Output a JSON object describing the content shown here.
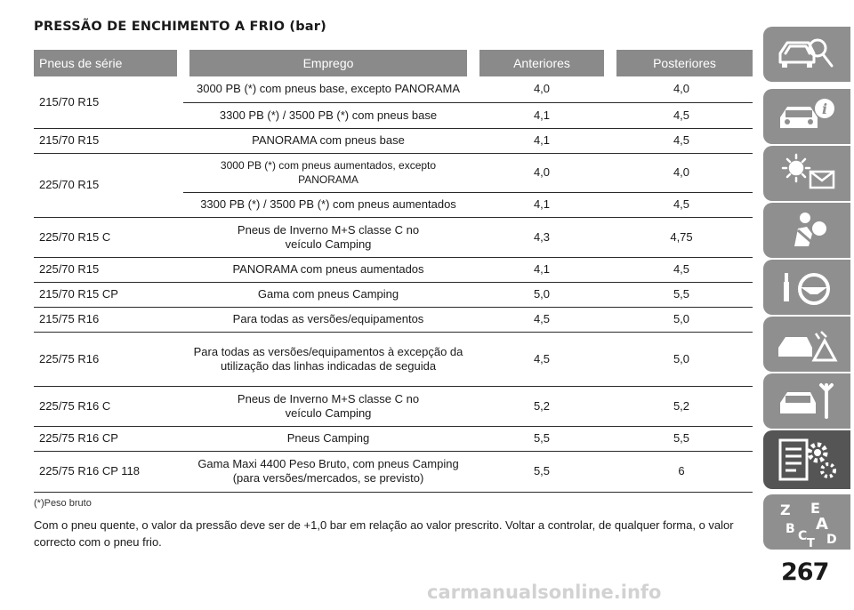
{
  "title": "PRESSÃO DE ENCHIMENTO A FRIO (bar)",
  "table": {
    "headers": [
      "Pneus de série",
      "Emprego",
      "Anteriores",
      "Posteriores"
    ],
    "rows": [
      {
        "tyre": "215/70 R15",
        "rowspan": 2,
        "use": "3000 PB (*) com pneus base, excepto PANORAMA",
        "front": "4,0",
        "rear": "4,0"
      },
      {
        "use": "3300 PB (*) / 3500 PB (*) com pneus base",
        "front": "4,1",
        "rear": "4,5"
      },
      {
        "tyre": "215/70 R15",
        "use": "PANORAMA com pneus base",
        "front": "4,1",
        "rear": "4,5"
      },
      {
        "tyre": "225/70 R15",
        "rowspan": 2,
        "use": "3000 PB (*) com pneus aumentados, excepto PANORAMA",
        "front": "4,0",
        "rear": "4,0"
      },
      {
        "use": "3300 PB (*) / 3500 PB (*) com pneus aumentados",
        "front": "4,1",
        "rear": "4,5"
      },
      {
        "tyre": "225/70 R15 C",
        "use": "Pneus de Inverno M+S classe C no veículo Camping",
        "front": "4,3",
        "rear": "4,75"
      },
      {
        "tyre": "225/70 R15",
        "use": "PANORAMA com pneus aumentados",
        "front": "4,1",
        "rear": "4,5"
      },
      {
        "tyre": "215/70 R15 CP",
        "use": "Gama com pneus Camping",
        "front": "5,0",
        "rear": "5,5"
      },
      {
        "tyre": "215/75 R16",
        "use": "Para todas as versões/equipamentos",
        "front": "4,5",
        "rear": "5,0"
      },
      {
        "tyre": "225/75 R16",
        "use": "Para todas as versões/equipamentos à excepção da utilização das linhas indicadas de seguida",
        "front": "4,5",
        "rear": "5,0"
      },
      {
        "tyre": "225/75 R16 C",
        "use": "Pneus de Inverno M+S classe C no veículo Camping",
        "front": "5,2",
        "rear": "5,2"
      },
      {
        "tyre": "225/75 R16 CP",
        "use": "Pneus Camping",
        "front": "5,5",
        "rear": "5,5"
      },
      {
        "tyre": "225/75 R16 CP 118",
        "use": "Gama Maxi 4400 Peso Bruto, com pneus Camping (para versões/mercados, se previsto)",
        "front": "5,5",
        "rear": "6"
      }
    ]
  },
  "footnote": "(*)Peso bruto",
  "note": "Com o pneu quente, o valor da pressão deve ser de +1,0 bar em relação ao valor prescrito. Voltar a controlar, de qualquer forma, o valor correcto com o pneu frio.",
  "sidebar": {
    "tabs": [
      {
        "icon": "car-search-icon"
      },
      {
        "icon": "car-info-icon"
      },
      {
        "icon": "warning-lights-icon"
      },
      {
        "icon": "airbag-seat-icon"
      },
      {
        "icon": "steering-wheel-icon"
      },
      {
        "icon": "breakdown-triangle-icon"
      },
      {
        "icon": "car-service-icon"
      },
      {
        "icon": "technical-data-icon",
        "active": true
      },
      {
        "icon": "index-letters-icon",
        "letters": [
          "Z",
          "E",
          "A",
          "B",
          "C",
          "D",
          "T"
        ]
      }
    ],
    "colors": {
      "tab": "#8f8f8f",
      "active_tab": "#555555",
      "icon": "#ffffff"
    }
  },
  "page_number": "267",
  "watermark": "carmanualsonline.info"
}
